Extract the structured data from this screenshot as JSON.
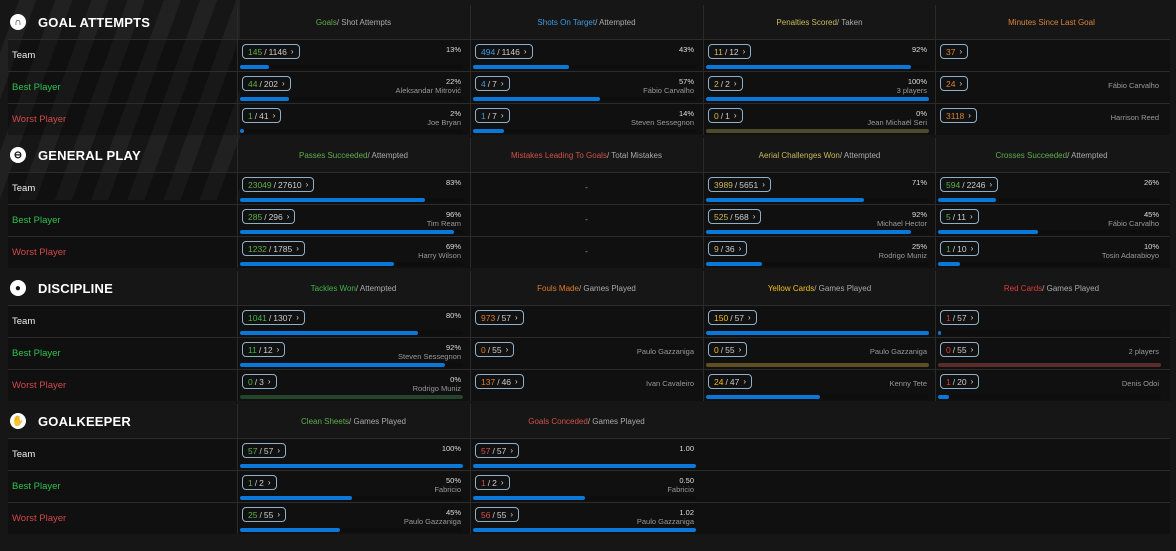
{
  "row_labels": [
    "Team",
    "Best Player",
    "Worst Player"
  ],
  "row_colors": [
    "#eeeeee",
    "#2ec24f",
    "#d24848"
  ],
  "colors": {
    "bar": "#0a78d8",
    "pill_border": "#8fb0c8"
  },
  "sections": [
    {
      "title": "GOAL ATTEMPTS",
      "icon": "goal-icon",
      "columns": [
        {
          "metric": "Goals",
          "rest": " / Shot Attempts",
          "color": "#5fae4c",
          "cells": [
            {
              "num": "145",
              "den": "1146",
              "pct": "13%",
              "player": "",
              "fill": 13
            },
            {
              "num": "44",
              "den": "202",
              "pct": "22%",
              "player": "Aleksandar Mitrović",
              "fill": 22
            },
            {
              "num": "1",
              "den": "41",
              "pct": "2%",
              "player": "Joe Bryan",
              "fill": 2
            }
          ]
        },
        {
          "metric": "Shots On Target",
          "rest": " / Attempted",
          "color": "#3c9be0",
          "cells": [
            {
              "num": "494",
              "den": "1146",
              "pct": "43%",
              "player": "",
              "fill": 43
            },
            {
              "num": "4",
              "den": "7",
              "pct": "57%",
              "player": "Fábio Carvalho",
              "fill": 57
            },
            {
              "num": "1",
              "den": "7",
              "pct": "14%",
              "player": "Steven Sessegnon",
              "fill": 14
            }
          ]
        },
        {
          "metric": "Penalties Scored",
          "rest": " / Taken",
          "color": "#c9b85a",
          "cells": [
            {
              "num": "11",
              "den": "12",
              "pct": "92%",
              "player": "",
              "fill": 92
            },
            {
              "num": "2",
              "den": "2",
              "pct": "100%",
              "player": "3 players",
              "fill": 100
            },
            {
              "num": "0",
              "den": "1",
              "pct": "0%",
              "player": "Jean Michaël Seri",
              "fill": 0,
              "empty_color": "#4e4b2c"
            }
          ]
        },
        {
          "metric": "Minutes Since Last Goal",
          "rest": "",
          "color": "#d9843a",
          "cells": [
            {
              "num": "37",
              "player": ""
            },
            {
              "num": "24",
              "player": "Fábio Carvalho"
            },
            {
              "num": "3118",
              "player": "Harrison Reed"
            }
          ]
        }
      ]
    },
    {
      "title": "GENERAL PLAY",
      "icon": "ball-icon",
      "columns": [
        {
          "metric": "Passes Succeeded",
          "rest": " / Attempted",
          "color": "#5fae4c",
          "cells": [
            {
              "num": "23049",
              "den": "27610",
              "pct": "83%",
              "player": "",
              "fill": 83
            },
            {
              "num": "285",
              "den": "296",
              "pct": "96%",
              "player": "Tim Ream",
              "fill": 96
            },
            {
              "num": "1232",
              "den": "1785",
              "pct": "69%",
              "player": "Harry Wilson",
              "fill": 69
            }
          ]
        },
        {
          "metric": "Mistakes Leading To Goals",
          "rest": " / Total Mistakes",
          "color": "#d2504a",
          "cells": [
            {
              "dash": "-"
            },
            {
              "dash": "-"
            },
            {
              "dash": "-"
            }
          ]
        },
        {
          "metric": "Aerial Challenges Won",
          "rest": " / Attempted",
          "color": "#c9b85a",
          "cells": [
            {
              "num": "3989",
              "den": "5651",
              "pct": "71%",
              "player": "",
              "fill": 71
            },
            {
              "num": "525",
              "den": "568",
              "pct": "92%",
              "player": "Michael Hector",
              "fill": 92
            },
            {
              "num": "9",
              "den": "36",
              "pct": "25%",
              "player": "Rodrigo Muniz",
              "fill": 25
            }
          ]
        },
        {
          "metric": "Crosses Succeeded",
          "rest": " / Attempted",
          "color": "#5fae4c",
          "cells": [
            {
              "num": "594",
              "den": "2246",
              "pct": "26%",
              "player": "",
              "fill": 26
            },
            {
              "num": "5",
              "den": "11",
              "pct": "45%",
              "player": "Fábio Carvalho",
              "fill": 45
            },
            {
              "num": "1",
              "den": "10",
              "pct": "10%",
              "player": "Tosin Adarabioyo",
              "fill": 10
            }
          ]
        }
      ]
    },
    {
      "title": "DISCIPLINE",
      "icon": "whistle-icon",
      "columns": [
        {
          "metric": "Tackles Won",
          "rest": " / Attempted",
          "color": "#3db54a",
          "cells": [
            {
              "num": "1041",
              "den": "1307",
              "pct": "80%",
              "player": "",
              "fill": 80
            },
            {
              "num": "11",
              "den": "12",
              "pct": "92%",
              "player": "Steven Sessegnon",
              "fill": 92
            },
            {
              "num": "0",
              "den": "3",
              "pct": "0%",
              "player": "Rodrigo Muniz",
              "fill": 0,
              "empty_color": "#24452a"
            }
          ]
        },
        {
          "metric": "Fouls Made",
          "rest": " / Games Played",
          "color": "#e07b2a",
          "cells": [
            {
              "num": "973",
              "den": "57",
              "player": "",
              "nobar": true
            },
            {
              "num": "0",
              "den": "55",
              "player": "Paulo Gazzaniga",
              "nobar": true
            },
            {
              "num": "137",
              "den": "46",
              "player": "Ivan Cavaleiro",
              "nobar": true
            }
          ]
        },
        {
          "metric": "Yellow Cards",
          "rest": " / Games Played",
          "color": "#f0c020",
          "cells": [
            {
              "num": "150",
              "den": "57",
              "player": "",
              "fill": 100
            },
            {
              "num": "0",
              "den": "55",
              "player": "Paulo Gazzaniga",
              "fill": 0,
              "empty_color": "#5e5022"
            },
            {
              "num": "24",
              "den": "47",
              "player": "Kenny Tete",
              "fill": 51
            }
          ]
        },
        {
          "metric": "Red Cards",
          "rest": " / Games Played",
          "color": "#e03a3a",
          "cells": [
            {
              "num": "1",
              "den": "57",
              "player": "",
              "fill": 1
            },
            {
              "num": "0",
              "den": "55",
              "player": "2 players",
              "fill": 0,
              "empty_color": "#5a2c2c"
            },
            {
              "num": "1",
              "den": "20",
              "player": "Denis Odoi",
              "fill": 5
            }
          ]
        }
      ]
    },
    {
      "title": "GOALKEEPER",
      "icon": "glove-icon",
      "columns": [
        {
          "metric": "Clean Sheets",
          "rest": " / Games Played",
          "color": "#5fae4c",
          "cells": [
            {
              "num": "57",
              "den": "57",
              "pct": "100%",
              "player": "",
              "fill": 100
            },
            {
              "num": "1",
              "den": "2",
              "pct": "50%",
              "player": "Fabricio",
              "fill": 50
            },
            {
              "num": "25",
              "den": "55",
              "pct": "45%",
              "player": "Paulo Gazzaniga",
              "fill": 45
            }
          ]
        },
        {
          "metric": "Goals Conceded",
          "rest": " / Games Played",
          "color": "#d2504a",
          "cells": [
            {
              "num": "57",
              "den": "57",
              "pct": "1.00",
              "player": "",
              "fill": 100
            },
            {
              "num": "1",
              "den": "2",
              "pct": "0.50",
              "player": "Fabricio",
              "fill": 50
            },
            {
              "num": "56",
              "den": "55",
              "pct": "1.02",
              "player": "Paulo Gazzaniga",
              "fill": 100
            }
          ]
        }
      ]
    }
  ]
}
